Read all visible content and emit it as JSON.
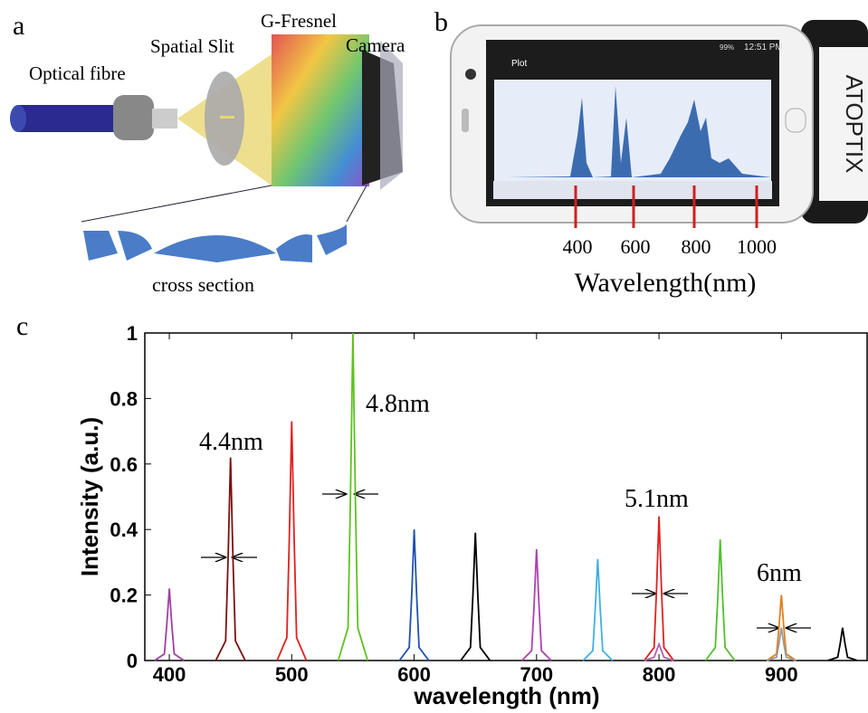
{
  "panel_a": {
    "label": "a",
    "optical_fibre": "Optical fibre",
    "spatial_slit": "Spatial Slit",
    "g_fresnel": "G-Fresnel",
    "camera": "Camera",
    "cross_section": "cross section"
  },
  "panel_b": {
    "label": "b",
    "app_title": "Plot",
    "clock": "12:51 PM",
    "battery": "99%",
    "brand": "ATOPTIX",
    "wavelength_labels": [
      "400",
      "600",
      "800",
      "1000"
    ],
    "axis_label": "Wavelength(nm)"
  },
  "panel_c": {
    "label": "c"
  },
  "chart_data": {
    "type": "line",
    "x_label": "wavelength (nm)",
    "y_label": "Intensity (a.u.)",
    "xlim": [
      380,
      970
    ],
    "ylim": [
      0,
      1
    ],
    "xticks": [
      400,
      500,
      600,
      700,
      800,
      900
    ],
    "yticks": [
      0,
      0.2,
      0.4,
      0.6,
      0.8,
      1
    ],
    "annotations": [
      "4.4nm",
      "4.8nm",
      "5.1nm",
      "6nm"
    ],
    "series": [
      {
        "color": "#a040a0",
        "x": [
          388,
          396,
          398,
          400,
          402,
          404,
          412
        ],
        "values": [
          0,
          0.02,
          0.11,
          0.22,
          0.11,
          0.02,
          0
        ]
      },
      {
        "color": "#7a1010",
        "x": [
          438,
          446,
          448,
          450,
          452,
          454,
          462
        ],
        "values": [
          0,
          0.06,
          0.31,
          0.62,
          0.31,
          0.06,
          0
        ]
      },
      {
        "color": "#e02020",
        "x": [
          488,
          496,
          498,
          500,
          502,
          504,
          512
        ],
        "values": [
          0,
          0.07,
          0.37,
          0.73,
          0.37,
          0.07,
          0
        ]
      },
      {
        "color": "#60c020",
        "x": [
          538,
          546,
          548,
          550,
          552,
          554,
          562
        ],
        "values": [
          0,
          0.1,
          0.5,
          1,
          0.5,
          0.1,
          0
        ]
      },
      {
        "color": "#2050b0",
        "x": [
          588,
          596,
          598,
          600,
          602,
          604,
          612
        ],
        "values": [
          0,
          0.04,
          0.2,
          0.4,
          0.2,
          0.04,
          0
        ]
      },
      {
        "color": "#000000",
        "x": [
          638,
          646,
          648,
          650,
          652,
          654,
          662
        ],
        "values": [
          0,
          0.04,
          0.2,
          0.39,
          0.2,
          0.04,
          0
        ]
      },
      {
        "color": "#b040b0",
        "x": [
          688,
          696,
          698,
          700,
          702,
          704,
          712
        ],
        "values": [
          0,
          0.03,
          0.17,
          0.34,
          0.17,
          0.03,
          0
        ]
      },
      {
        "color": "#40b0e0",
        "x": [
          738,
          746,
          748,
          750,
          752,
          754,
          762
        ],
        "values": [
          0,
          0.03,
          0.16,
          0.31,
          0.16,
          0.03,
          0
        ]
      },
      {
        "color": "#e02020",
        "x": [
          788,
          796,
          798,
          800,
          802,
          804,
          812
        ],
        "values": [
          0,
          0.04,
          0.22,
          0.44,
          0.22,
          0.04,
          0
        ]
      },
      {
        "color": "#b060b0",
        "x": [
          788,
          796,
          798,
          800,
          802,
          804,
          812
        ],
        "values": [
          0,
          0.01,
          0.03,
          0.05,
          0.03,
          0.01,
          0
        ]
      },
      {
        "color": "#50c030",
        "x": [
          838,
          846,
          848,
          850,
          852,
          854,
          862
        ],
        "values": [
          0,
          0.04,
          0.19,
          0.37,
          0.19,
          0.04,
          0
        ]
      },
      {
        "color": "#e08020",
        "x": [
          888,
          896,
          898,
          900,
          902,
          904,
          912
        ],
        "values": [
          0,
          0.02,
          0.1,
          0.2,
          0.1,
          0.02,
          0
        ]
      },
      {
        "color": "#999999",
        "x": [
          888,
          896,
          898,
          900,
          902,
          904,
          912
        ],
        "values": [
          0,
          0.01,
          0.05,
          0.1,
          0.05,
          0.01,
          0
        ]
      },
      {
        "color": "#000000",
        "x": [
          938,
          946,
          948,
          950,
          952,
          954,
          962
        ],
        "values": [
          0,
          0.01,
          0.05,
          0.1,
          0.05,
          0.01,
          0
        ]
      }
    ]
  }
}
